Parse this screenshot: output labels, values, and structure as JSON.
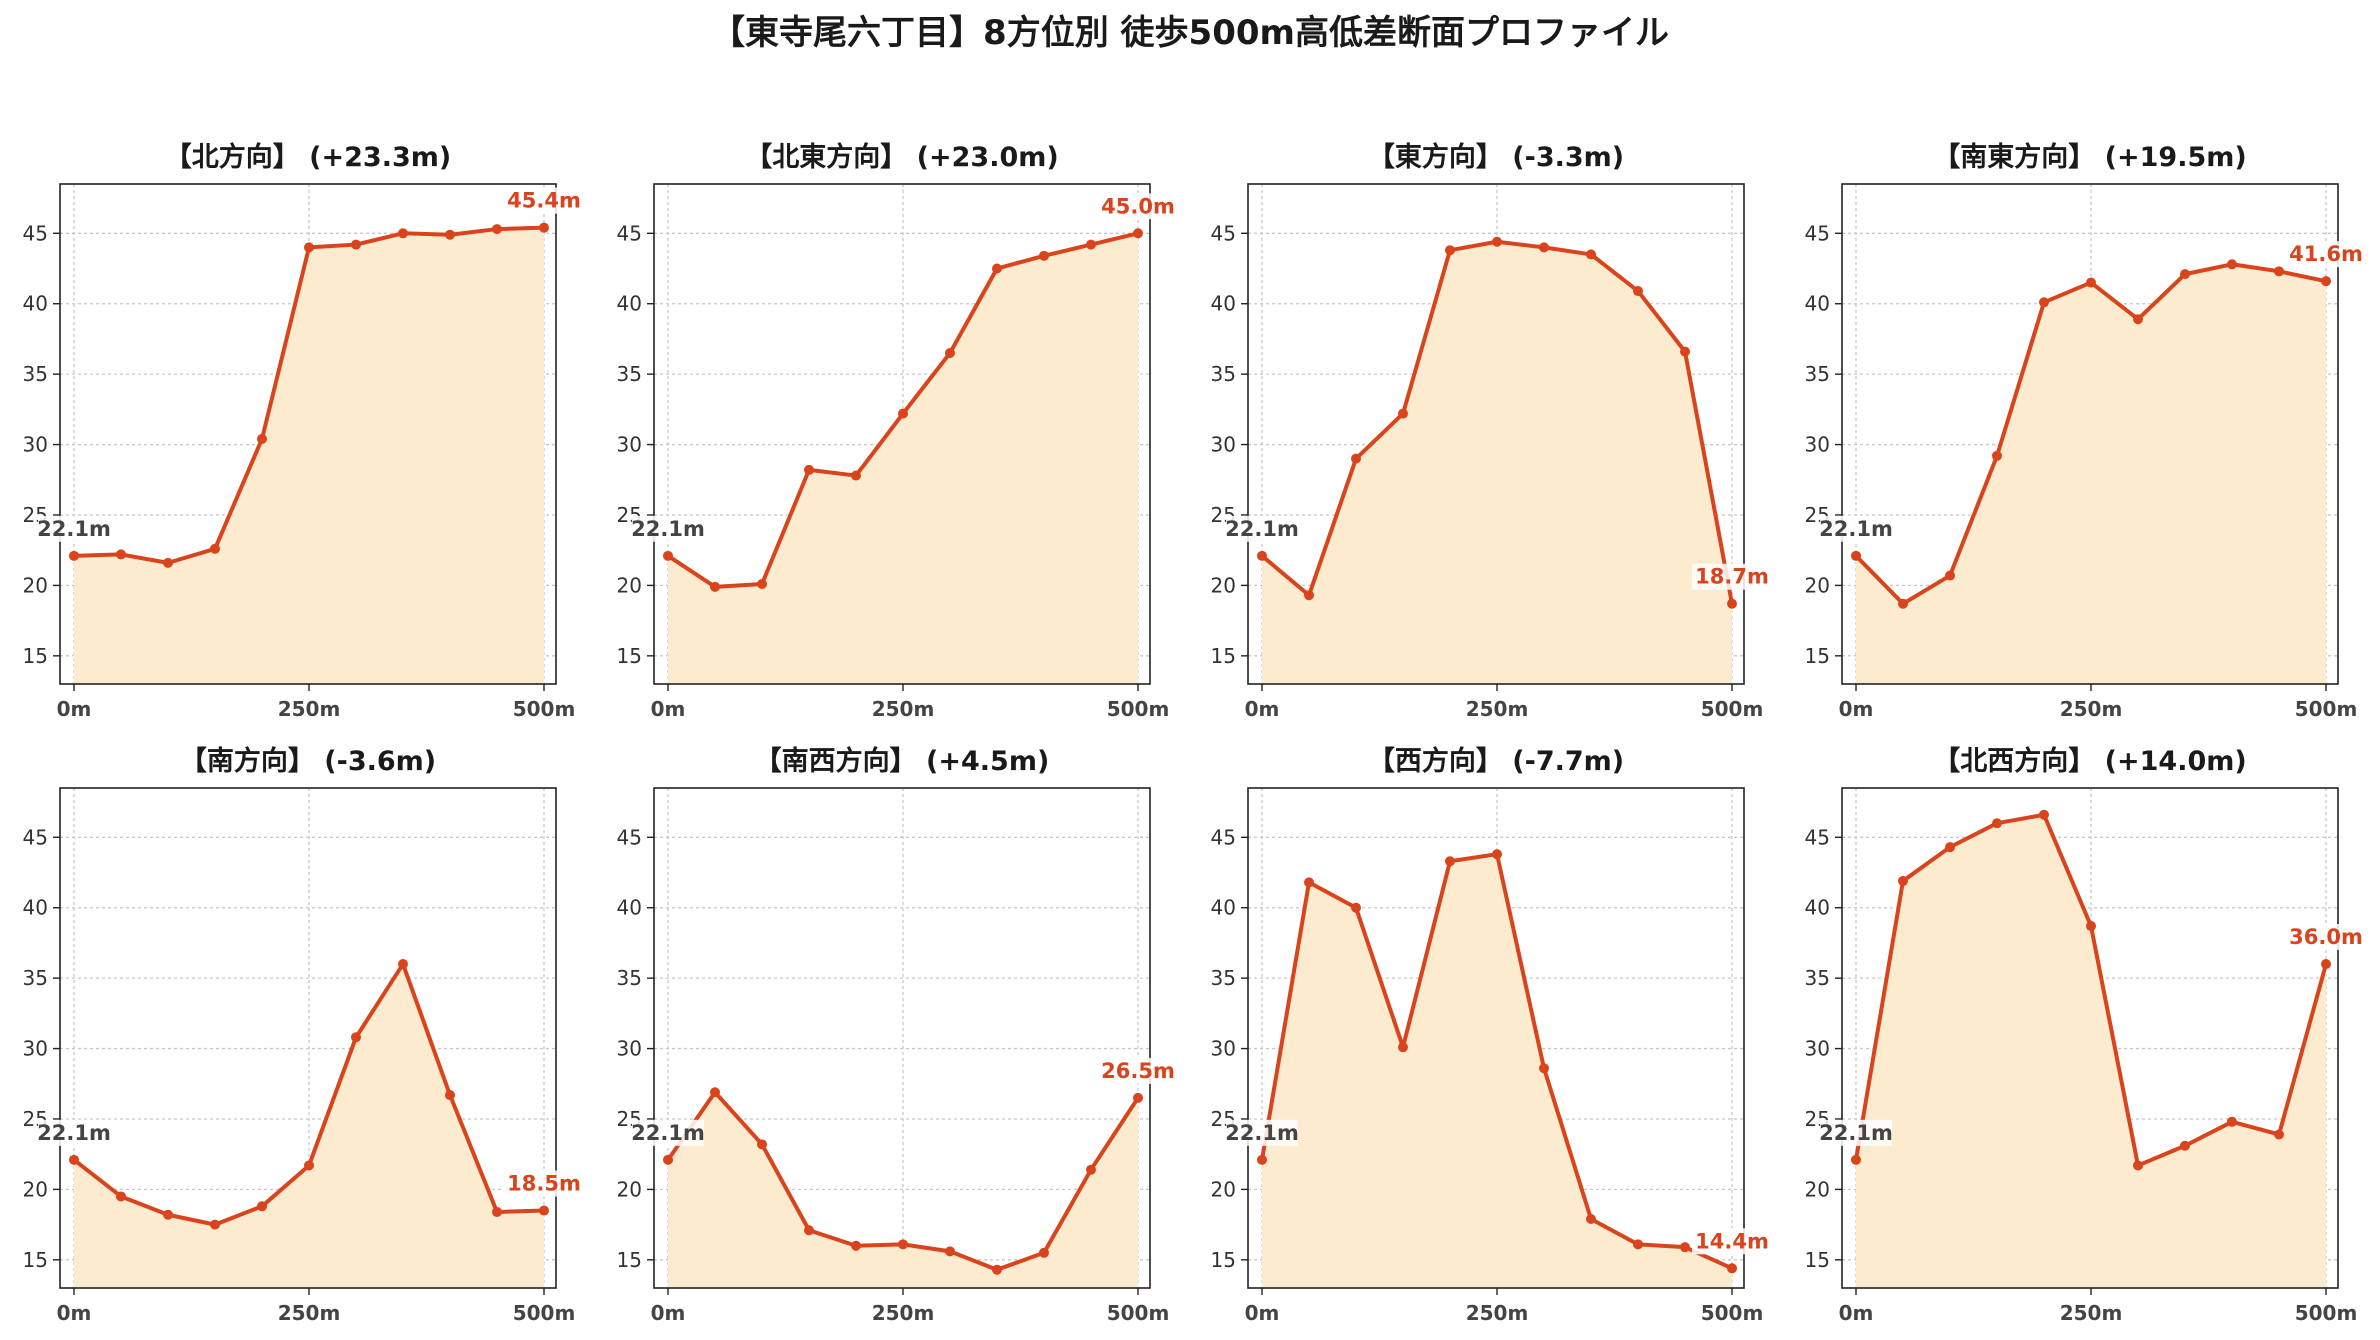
{
  "title": "【東寺尾六丁目】8方位別 徒歩500m高低差断面プロファイル",
  "colors": {
    "line": "#d9441c",
    "fill": "#fdebd0",
    "grid": "#c8c8c8",
    "start_label": "#444444",
    "end_label": "#d9441c"
  },
  "chart_data": [
    {
      "type": "area",
      "title": "【北方向】 (+23.3m)",
      "x": [
        0,
        50,
        100,
        150,
        200,
        250,
        300,
        350,
        400,
        450,
        500
      ],
      "y": [
        22.1,
        22.2,
        21.6,
        22.6,
        30.4,
        44.0,
        44.2,
        45.0,
        44.9,
        45.3,
        45.4
      ],
      "start_label": "22.1m",
      "end_label": "45.4m",
      "xlim": [
        0,
        500
      ],
      "ylim": [
        13,
        48.5
      ],
      "yticks": [
        15,
        20,
        25,
        30,
        35,
        40,
        45
      ],
      "xticks": [
        0,
        250,
        500
      ],
      "xtick_labels": [
        "0m",
        "250m",
        "500m"
      ],
      "grid": true
    },
    {
      "type": "area",
      "title": "【北東方向】 (+23.0m)",
      "x": [
        0,
        50,
        100,
        150,
        200,
        250,
        300,
        350,
        400,
        450,
        500
      ],
      "y": [
        22.1,
        19.9,
        20.1,
        28.2,
        27.8,
        32.2,
        36.5,
        42.5,
        43.4,
        44.2,
        45.0
      ],
      "start_label": "22.1m",
      "end_label": "45.0m",
      "xlim": [
        0,
        500
      ],
      "ylim": [
        13,
        48.5
      ],
      "yticks": [
        15,
        20,
        25,
        30,
        35,
        40,
        45
      ],
      "xticks": [
        0,
        250,
        500
      ],
      "xtick_labels": [
        "0m",
        "250m",
        "500m"
      ],
      "grid": true
    },
    {
      "type": "area",
      "title": "【東方向】 (-3.3m)",
      "x": [
        0,
        50,
        100,
        150,
        200,
        250,
        300,
        350,
        400,
        450,
        500
      ],
      "y": [
        22.1,
        19.3,
        29.0,
        32.2,
        43.8,
        44.4,
        44.0,
        43.5,
        40.9,
        36.6,
        18.7
      ],
      "start_label": "22.1m",
      "end_label": "18.7m",
      "xlim": [
        0,
        500
      ],
      "ylim": [
        13,
        48.5
      ],
      "yticks": [
        15,
        20,
        25,
        30,
        35,
        40,
        45
      ],
      "xticks": [
        0,
        250,
        500
      ],
      "xtick_labels": [
        "0m",
        "250m",
        "500m"
      ],
      "grid": true
    },
    {
      "type": "area",
      "title": "【南東方向】 (+19.5m)",
      "x": [
        0,
        50,
        100,
        150,
        200,
        250,
        300,
        350,
        400,
        450,
        500
      ],
      "y": [
        22.1,
        18.7,
        20.7,
        29.2,
        40.1,
        41.5,
        38.9,
        42.1,
        42.8,
        42.3,
        41.6
      ],
      "start_label": "22.1m",
      "end_label": "41.6m",
      "xlim": [
        0,
        500
      ],
      "ylim": [
        13,
        48.5
      ],
      "yticks": [
        15,
        20,
        25,
        30,
        35,
        40,
        45
      ],
      "xticks": [
        0,
        250,
        500
      ],
      "xtick_labels": [
        "0m",
        "250m",
        "500m"
      ],
      "grid": true
    },
    {
      "type": "area",
      "title": "【南方向】 (-3.6m)",
      "x": [
        0,
        50,
        100,
        150,
        200,
        250,
        300,
        350,
        400,
        450,
        500
      ],
      "y": [
        22.1,
        19.5,
        18.2,
        17.5,
        18.8,
        21.7,
        30.8,
        36.0,
        26.7,
        18.4,
        18.5
      ],
      "start_label": "22.1m",
      "end_label": "18.5m",
      "xlim": [
        0,
        500
      ],
      "ylim": [
        13,
        48.5
      ],
      "yticks": [
        15,
        20,
        25,
        30,
        35,
        40,
        45
      ],
      "xticks": [
        0,
        250,
        500
      ],
      "xtick_labels": [
        "0m",
        "250m",
        "500m"
      ],
      "grid": true
    },
    {
      "type": "area",
      "title": "【南西方向】 (+4.5m)",
      "x": [
        0,
        50,
        100,
        150,
        200,
        250,
        300,
        350,
        400,
        450,
        500
      ],
      "y": [
        22.1,
        26.9,
        23.2,
        17.1,
        16.0,
        16.1,
        15.6,
        14.3,
        15.5,
        21.4,
        26.5
      ],
      "start_label": "22.1m",
      "end_label": "26.5m",
      "xlim": [
        0,
        500
      ],
      "ylim": [
        13,
        48.5
      ],
      "yticks": [
        15,
        20,
        25,
        30,
        35,
        40,
        45
      ],
      "xticks": [
        0,
        250,
        500
      ],
      "xtick_labels": [
        "0m",
        "250m",
        "500m"
      ],
      "grid": true
    },
    {
      "type": "area",
      "title": "【西方向】 (-7.7m)",
      "x": [
        0,
        50,
        100,
        150,
        200,
        250,
        300,
        350,
        400,
        450,
        500
      ],
      "y": [
        22.1,
        41.8,
        40.0,
        30.1,
        43.3,
        43.8,
        28.6,
        17.9,
        16.1,
        15.9,
        14.4
      ],
      "start_label": "22.1m",
      "end_label": "14.4m",
      "xlim": [
        0,
        500
      ],
      "ylim": [
        13,
        48.5
      ],
      "yticks": [
        15,
        20,
        25,
        30,
        35,
        40,
        45
      ],
      "xticks": [
        0,
        250,
        500
      ],
      "xtick_labels": [
        "0m",
        "250m",
        "500m"
      ],
      "grid": true
    },
    {
      "type": "area",
      "title": "【北西方向】 (+14.0m)",
      "x": [
        0,
        50,
        100,
        150,
        200,
        250,
        300,
        350,
        400,
        450,
        500
      ],
      "y": [
        22.1,
        41.9,
        44.3,
        46.0,
        46.6,
        38.7,
        21.7,
        23.1,
        24.8,
        23.9,
        36.0
      ],
      "start_label": "22.1m",
      "end_label": "36.0m",
      "xlim": [
        0,
        500
      ],
      "ylim": [
        13,
        48.5
      ],
      "yticks": [
        15,
        20,
        25,
        30,
        35,
        40,
        45
      ],
      "xticks": [
        0,
        250,
        500
      ],
      "xtick_labels": [
        "0m",
        "250m",
        "500m"
      ],
      "grid": true
    }
  ]
}
